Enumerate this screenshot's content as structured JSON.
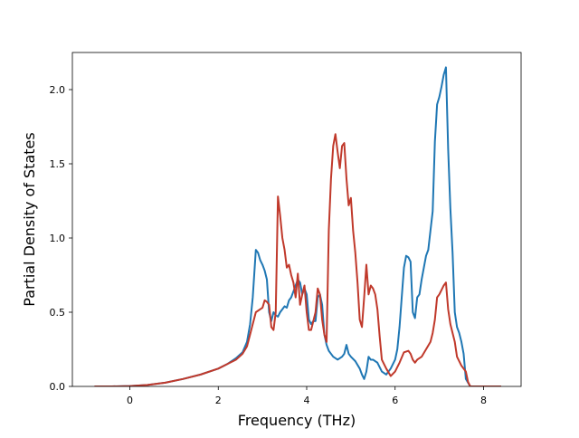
{
  "chart_data": {
    "type": "line",
    "title": "",
    "xlabel": "Frequency (THz)",
    "ylabel": "Partial Density of States",
    "xlim": [
      -1.3,
      8.85
    ],
    "ylim": [
      0.0,
      2.25
    ],
    "grid": false,
    "legend": "none",
    "xticks": [
      0,
      2,
      4,
      6,
      8
    ],
    "xtick_labels": [
      "0",
      "2",
      "4",
      "6",
      "8"
    ],
    "yticks": [
      0.0,
      0.5,
      1.0,
      1.5,
      2.0
    ],
    "ytick_labels": [
      "0.0",
      "0.5",
      "1.0",
      "1.5",
      "2.0"
    ],
    "series": [
      {
        "color": "#1f77b4",
        "x": [
          -0.8,
          -0.4,
          0.0,
          0.4,
          0.8,
          1.2,
          1.6,
          2.0,
          2.2,
          2.4,
          2.55,
          2.65,
          2.72,
          2.78,
          2.85,
          2.9,
          2.95,
          3.0,
          3.05,
          3.1,
          3.15,
          3.2,
          3.25,
          3.3,
          3.35,
          3.4,
          3.45,
          3.5,
          3.55,
          3.6,
          3.65,
          3.7,
          3.75,
          3.8,
          3.85,
          3.9,
          3.95,
          4.0,
          4.05,
          4.1,
          4.15,
          4.2,
          4.25,
          4.3,
          4.35,
          4.4,
          4.45,
          4.5,
          4.55,
          4.6,
          4.7,
          4.8,
          4.85,
          4.9,
          4.95,
          5.0,
          5.1,
          5.2,
          5.25,
          5.3,
          5.35,
          5.4,
          5.45,
          5.5,
          5.6,
          5.7,
          5.8,
          5.9,
          6.0,
          6.05,
          6.1,
          6.15,
          6.2,
          6.25,
          6.3,
          6.35,
          6.4,
          6.45,
          6.5,
          6.55,
          6.6,
          6.65,
          6.7,
          6.75,
          6.8,
          6.85,
          6.9,
          6.95,
          7.0,
          7.05,
          7.1,
          7.15,
          7.2,
          7.25,
          7.3,
          7.35,
          7.4,
          7.45,
          7.5,
          7.55,
          7.6,
          7.7,
          7.8,
          8.0,
          8.2,
          8.4
        ],
        "y": [
          0.0,
          0.0,
          0.002,
          0.01,
          0.025,
          0.05,
          0.08,
          0.12,
          0.15,
          0.19,
          0.23,
          0.3,
          0.42,
          0.6,
          0.92,
          0.9,
          0.85,
          0.82,
          0.78,
          0.72,
          0.5,
          0.44,
          0.5,
          0.48,
          0.47,
          0.5,
          0.52,
          0.54,
          0.53,
          0.58,
          0.6,
          0.64,
          0.68,
          0.72,
          0.7,
          0.62,
          0.66,
          0.62,
          0.45,
          0.42,
          0.44,
          0.44,
          0.6,
          0.62,
          0.55,
          0.35,
          0.28,
          0.24,
          0.22,
          0.2,
          0.18,
          0.2,
          0.22,
          0.28,
          0.22,
          0.2,
          0.17,
          0.12,
          0.08,
          0.05,
          0.1,
          0.2,
          0.18,
          0.18,
          0.16,
          0.1,
          0.08,
          0.12,
          0.18,
          0.25,
          0.4,
          0.6,
          0.8,
          0.88,
          0.87,
          0.84,
          0.5,
          0.46,
          0.6,
          0.62,
          0.72,
          0.8,
          0.88,
          0.92,
          1.05,
          1.18,
          1.65,
          1.9,
          1.95,
          2.02,
          2.1,
          2.15,
          1.6,
          1.2,
          0.9,
          0.5,
          0.4,
          0.36,
          0.3,
          0.22,
          0.05,
          0.0,
          0.0,
          0.0,
          0.0,
          0.0
        ]
      },
      {
        "color": "#c0392b",
        "x": [
          -0.8,
          -0.4,
          0.0,
          0.4,
          0.8,
          1.2,
          1.6,
          2.0,
          2.2,
          2.4,
          2.55,
          2.65,
          2.72,
          2.78,
          2.85,
          2.95,
          3.0,
          3.05,
          3.1,
          3.15,
          3.2,
          3.25,
          3.3,
          3.35,
          3.4,
          3.45,
          3.5,
          3.55,
          3.6,
          3.65,
          3.7,
          3.75,
          3.8,
          3.85,
          3.9,
          3.95,
          4.0,
          4.05,
          4.1,
          4.15,
          4.2,
          4.25,
          4.3,
          4.35,
          4.4,
          4.45,
          4.5,
          4.55,
          4.6,
          4.65,
          4.7,
          4.75,
          4.8,
          4.85,
          4.9,
          4.95,
          5.0,
          5.05,
          5.1,
          5.15,
          5.2,
          5.25,
          5.3,
          5.35,
          5.4,
          5.45,
          5.5,
          5.55,
          5.6,
          5.65,
          5.7,
          5.8,
          5.9,
          6.0,
          6.1,
          6.2,
          6.3,
          6.35,
          6.4,
          6.45,
          6.5,
          6.6,
          6.7,
          6.8,
          6.85,
          6.9,
          6.95,
          7.0,
          7.05,
          7.1,
          7.15,
          7.2,
          7.25,
          7.3,
          7.35,
          7.4,
          7.5,
          7.6,
          7.65,
          7.7,
          7.8,
          8.0,
          8.2,
          8.4
        ],
        "y": [
          0.0,
          0.0,
          0.002,
          0.01,
          0.025,
          0.05,
          0.08,
          0.12,
          0.15,
          0.18,
          0.22,
          0.27,
          0.35,
          0.42,
          0.5,
          0.52,
          0.53,
          0.58,
          0.57,
          0.55,
          0.4,
          0.38,
          0.5,
          1.28,
          1.15,
          1.0,
          0.92,
          0.8,
          0.82,
          0.75,
          0.7,
          0.6,
          0.76,
          0.55,
          0.62,
          0.68,
          0.5,
          0.38,
          0.38,
          0.44,
          0.5,
          0.66,
          0.62,
          0.45,
          0.35,
          0.3,
          1.05,
          1.4,
          1.62,
          1.7,
          1.58,
          1.47,
          1.62,
          1.64,
          1.4,
          1.22,
          1.27,
          1.05,
          0.9,
          0.7,
          0.45,
          0.4,
          0.6,
          0.82,
          0.62,
          0.68,
          0.66,
          0.62,
          0.52,
          0.34,
          0.18,
          0.12,
          0.07,
          0.1,
          0.16,
          0.23,
          0.24,
          0.22,
          0.18,
          0.16,
          0.18,
          0.2,
          0.25,
          0.3,
          0.36,
          0.45,
          0.6,
          0.62,
          0.65,
          0.68,
          0.7,
          0.52,
          0.42,
          0.36,
          0.3,
          0.2,
          0.14,
          0.1,
          0.03,
          0.0,
          0.0,
          0.0,
          0.0,
          0.0
        ]
      }
    ]
  }
}
